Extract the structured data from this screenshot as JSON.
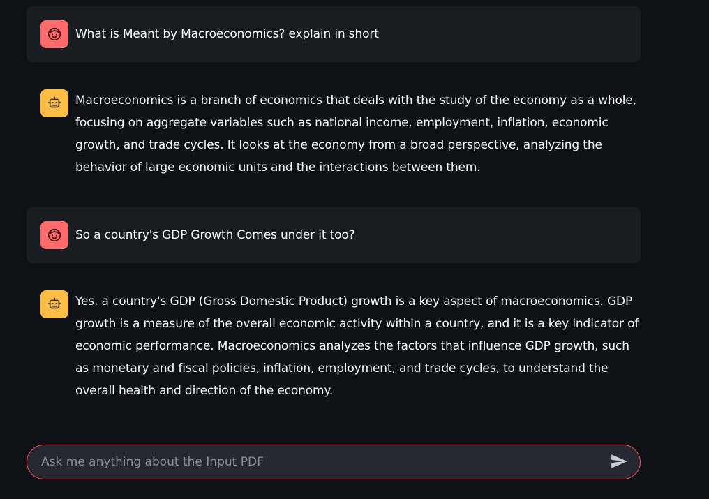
{
  "messages": [
    {
      "role": "user",
      "avatar_icon": "face-icon",
      "text": "What is Meant by Macroeconomics? explain in short"
    },
    {
      "role": "assistant",
      "avatar_icon": "robot-icon",
      "text": "Macroeconomics is a branch of economics that deals with the study of the economy as a whole, focusing on aggregate variables such as national income, employment, inflation, economic growth, and trade cycles. It looks at the economy from a broad perspective, analyzing the behavior of large economic units and the interactions between them."
    },
    {
      "role": "user",
      "avatar_icon": "face-icon",
      "text": "So a country's GDP Growth Comes under it too?"
    },
    {
      "role": "assistant",
      "avatar_icon": "robot-icon",
      "text": "Yes, a country's GDP (Gross Domestic Product) growth is a key aspect of macroeconomics. GDP growth is a measure of the overall economic activity within a country, and it is a key indicator of economic performance. Macroeconomics analyzes the factors that influence GDP growth, such as monetary and fiscal policies, inflation, employment, and trade cycles, to understand the overall health and direction of the economy."
    }
  ],
  "chat_input": {
    "placeholder": "Ask me anything about the Input PDF",
    "value": "",
    "send_icon": "send-icon"
  },
  "colors": {
    "background": "#0e1117",
    "user_bubble": "#1a1c24",
    "user_avatar": "#ff6b6b",
    "bot_avatar": "#ffbd45",
    "input_border": "#ff4b4b",
    "input_bg": "#262730"
  }
}
